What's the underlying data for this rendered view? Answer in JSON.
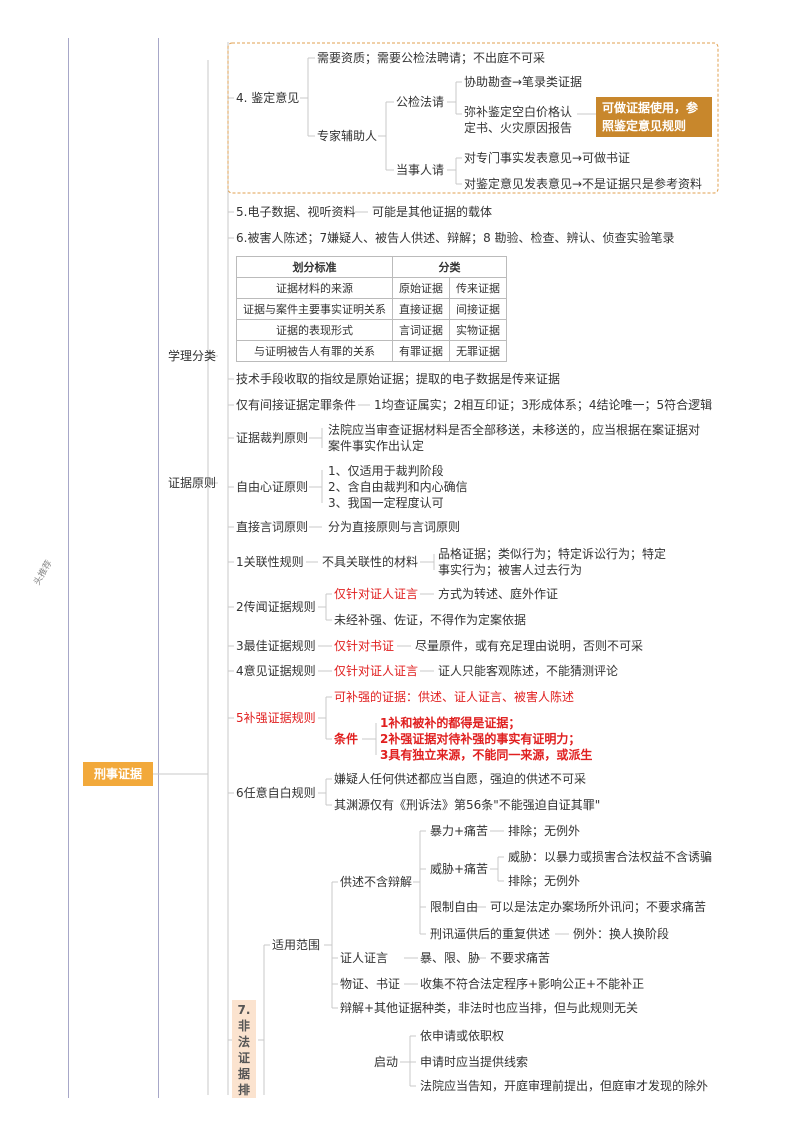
{
  "side_label": "头推荐",
  "root": "刑事证据",
  "sec4": {
    "label": "4. 鉴定意见",
    "req": "需要资质；需要公检法聘请；不出庭不可采",
    "expert": "专家辅助人",
    "gongjian": "公检法请",
    "assist": "协助勘查→笔录类证据",
    "fill1": "弥补鉴定空白价格认",
    "fill2": "定书、火灾原因报告",
    "note1": "可做证据使用，参",
    "note2": "照鉴定意见规则",
    "party": "当事人请",
    "p1": "对专门事实发表意见→可做书证",
    "p2": "对鉴定意见发表意见→不是证据只是参考资料"
  },
  "sec5": {
    "label": "5.电子数据、视听资料",
    "val": "可能是其他证据的载体"
  },
  "sec6": "6.被害人陈述；7嫌疑人、被告人供述、辩解；8 勘验、检查、辨认、侦查实验笔录",
  "xueli": {
    "label": "学理分类",
    "table": {
      "head": [
        "划分标准",
        "分类"
      ],
      "rows": [
        [
          "证据材料的来源",
          "原始证据",
          "传来证据"
        ],
        [
          "证据与案件主要事实证明关系",
          "直接证据",
          "间接证据"
        ],
        [
          "证据的表现形式",
          "言词证据",
          "实物证据"
        ],
        [
          "与证明被告人有罪的关系",
          "有罪证据",
          "无罪证据"
        ]
      ]
    },
    "tech": "技术手段收取的指纹是原始证据；提取的电子数据是传来证据",
    "indirect": "仅有间接证据定罪条件",
    "indirect_val": "1均查证属实；2相互印证；3形成体系；4结论唯一；5符合逻辑"
  },
  "yuanze": {
    "label": "证据原则",
    "caipan": "证据裁判原则",
    "caipan1": "法院应当审查证据材料是否全部移送，未移送的，应当根据在案证据对",
    "caipan2": "案件事实作出认定",
    "ziyou": "自由心证原则",
    "ziyou_items": [
      "1、仅适用于裁判阶段",
      "2、含自由裁判和内心确信",
      "3、我国一定程度认可"
    ],
    "zhijie": "直接言词原则",
    "zhijie_val": "分为直接原则与言词原则"
  },
  "guize": {
    "r1": "1关联性规则",
    "r1a": "不具关联性的材料",
    "r1b1": "品格证据；类似行为；特定诉讼行为；特定",
    "r1b2": "事实行为；被害人过去行为",
    "r2": "2传闻证据规则",
    "r2a": "仅针对证人证言",
    "r2a_val": "方式为转述、庭外作证",
    "r2b": "未经补强、佐证，不得作为定案依据",
    "r3": "3最佳证据规则",
    "r3a": "仅针对书证",
    "r3a_val": "尽量原件，或有充足理由说明，否则不可采",
    "r4": "4意见证据规则",
    "r4a": "仅针对证人证言",
    "r4a_val": "证人只能客观陈述，不能猜测评论",
    "r5": "5补强证据规则",
    "r5a": "可补强的证据：供述、证人证言、被害人陈述",
    "r5b": "条件",
    "r5c": [
      "1补和被补的都得是证据；",
      "2补强证据对待补强的事实有证明力；",
      "3具有独立来源，不能同一来源，或派生"
    ],
    "r6": "6任意自白规则",
    "r6a": "嫌疑人任何供述都应当自愿，强迫的供述不可采",
    "r6b": "其渊源仅有《刑诉法》第56条\"不能强迫自证其罪\""
  },
  "feifa": {
    "label_chars": [
      "7.",
      "非",
      "法",
      "证",
      "据",
      "排"
    ],
    "scope": "适用范围",
    "gongshu": "供述不含辩解",
    "g1": "暴力+痛苦",
    "g1v": "排除；无例外",
    "g2": "威胁+痛苦",
    "g2a": "威胁：以暴力或损害合法权益不含诱骗",
    "g2b": "排除；无例外",
    "g3": "限制自由",
    "g3v": "可以是法定办案场所外讯问；不要求痛苦",
    "g4": "刑讯逼供后的重复供述",
    "g4v": "例外：换人换阶段",
    "zhengren": "证人证言",
    "zhengren_a": "暴、限、胁",
    "zhengren_b": "不要求痛苦",
    "wuzheng": "物证、书证",
    "wuzheng_v": "收集不符合法定程序+影响公正+不能补正",
    "bianjie": "辩解+其他证据种类，非法时也应当排，但与此规则无关",
    "qidong": "启动",
    "q1": "依申请或依职权",
    "q2": "申请时应当提供线索",
    "q3": "法院应当告知，开庭审理前提出，但庭审才发现的除外"
  },
  "colors": {
    "accent": "#f2a93b",
    "note_bg": "#c8872c",
    "red": "#e02020",
    "line": "#c9c9c9",
    "frame": "#e0a050",
    "label7_bg": "#fbe3cf"
  }
}
